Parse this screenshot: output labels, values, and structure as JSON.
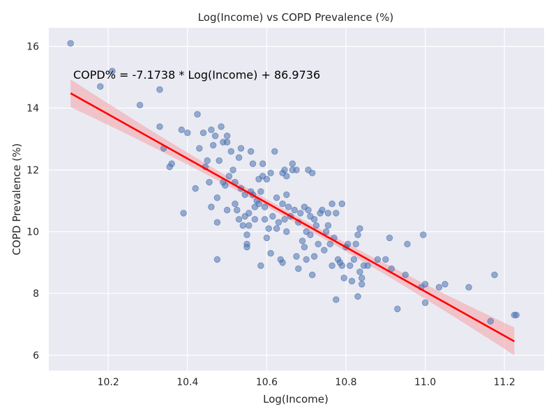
{
  "chart_data": {
    "type": "scatter",
    "title": "Log(Income) vs COPD Prevalence (%)",
    "xlabel": "Log(Income)",
    "ylabel": "COPD Prevalence (%)",
    "xlim": [
      10.05,
      11.3
    ],
    "ylim": [
      5.5,
      16.6
    ],
    "xticks": [
      10.2,
      10.4,
      10.6,
      10.8,
      11.0,
      11.2
    ],
    "xtick_labels": [
      "10.2",
      "10.4",
      "10.6",
      "10.8",
      "11.0",
      "11.2"
    ],
    "yticks": [
      6,
      8,
      10,
      12,
      14,
      16
    ],
    "ytick_labels": [
      "6",
      "8",
      "10",
      "12",
      "14",
      "16"
    ],
    "grid": true,
    "annotation": "COPD% = -7.1738 * Log(Income) + 86.9736",
    "regression": {
      "slope": -7.1738,
      "intercept": 86.9736,
      "x_range": [
        10.105,
        11.225
      ],
      "ci_halfwidth_ends": 0.45,
      "ci_halfwidth_mid": 0.12
    },
    "colors": {
      "points": "#4c72b0",
      "line": "#ff0000",
      "band": "#f4a3a8",
      "background": "#eaeaf2",
      "grid": "#ffffff"
    },
    "points": [
      [
        10.105,
        16.1
      ],
      [
        10.18,
        14.7
      ],
      [
        10.21,
        15.2
      ],
      [
        10.28,
        14.1
      ],
      [
        10.33,
        14.6
      ],
      [
        10.33,
        13.4
      ],
      [
        10.34,
        12.7
      ],
      [
        10.355,
        12.1
      ],
      [
        10.36,
        12.2
      ],
      [
        10.385,
        13.3
      ],
      [
        10.39,
        10.6
      ],
      [
        10.4,
        13.2
      ],
      [
        10.42,
        11.4
      ],
      [
        10.425,
        13.8
      ],
      [
        10.43,
        12.7
      ],
      [
        10.44,
        13.2
      ],
      [
        10.445,
        12.1
      ],
      [
        10.45,
        12.3
      ],
      [
        10.455,
        11.6
      ],
      [
        10.46,
        13.3
      ],
      [
        10.46,
        10.8
      ],
      [
        10.465,
        12.8
      ],
      [
        10.47,
        13.1
      ],
      [
        10.475,
        11.1
      ],
      [
        10.475,
        10.3
      ],
      [
        10.475,
        9.1
      ],
      [
        10.48,
        12.3
      ],
      [
        10.485,
        13.4
      ],
      [
        10.49,
        12.9
      ],
      [
        10.49,
        11.6
      ],
      [
        10.495,
        11.5
      ],
      [
        10.5,
        13.1
      ],
      [
        10.5,
        12.9
      ],
      [
        10.5,
        10.7
      ],
      [
        10.505,
        11.8
      ],
      [
        10.51,
        12.6
      ],
      [
        10.515,
        12.0
      ],
      [
        10.52,
        11.6
      ],
      [
        10.52,
        10.9
      ],
      [
        10.525,
        10.7
      ],
      [
        10.53,
        12.4
      ],
      [
        10.53,
        10.4
      ],
      [
        10.535,
        12.7
      ],
      [
        10.535,
        11.4
      ],
      [
        10.54,
        10.2
      ],
      [
        10.545,
        11.2
      ],
      [
        10.545,
        10.5
      ],
      [
        10.55,
        9.9
      ],
      [
        10.55,
        9.6
      ],
      [
        10.55,
        9.5
      ],
      [
        10.555,
        10.6
      ],
      [
        10.555,
        10.2
      ],
      [
        10.56,
        12.6
      ],
      [
        10.56,
        11.3
      ],
      [
        10.565,
        12.2
      ],
      [
        10.565,
        11.2
      ],
      [
        10.57,
        10.4
      ],
      [
        10.57,
        10.8
      ],
      [
        10.575,
        11.0
      ],
      [
        10.58,
        11.7
      ],
      [
        10.58,
        10.9
      ],
      [
        10.585,
        11.3
      ],
      [
        10.585,
        8.9
      ],
      [
        10.59,
        12.2
      ],
      [
        10.59,
        11.8
      ],
      [
        10.595,
        10.8
      ],
      [
        10.595,
        10.4
      ],
      [
        10.6,
        11.7
      ],
      [
        10.6,
        9.8
      ],
      [
        10.605,
        10.1
      ],
      [
        10.61,
        11.9
      ],
      [
        10.61,
        9.3
      ],
      [
        10.615,
        10.5
      ],
      [
        10.62,
        12.6
      ],
      [
        10.625,
        11.1
      ],
      [
        10.625,
        10.1
      ],
      [
        10.63,
        10.3
      ],
      [
        10.635,
        9.1
      ],
      [
        10.64,
        11.9
      ],
      [
        10.64,
        10.9
      ],
      [
        10.64,
        9.0
      ],
      [
        10.645,
        12.0
      ],
      [
        10.645,
        10.4
      ],
      [
        10.65,
        11.8
      ],
      [
        10.65,
        11.2
      ],
      [
        10.65,
        10.0
      ],
      [
        10.655,
        10.8
      ],
      [
        10.66,
        10.5
      ],
      [
        10.665,
        12.0
      ],
      [
        10.665,
        12.2
      ],
      [
        10.67,
        10.7
      ],
      [
        10.675,
        12.0
      ],
      [
        10.675,
        9.2
      ],
      [
        10.68,
        10.3
      ],
      [
        10.68,
        8.8
      ],
      [
        10.685,
        10.6
      ],
      [
        10.69,
        9.7
      ],
      [
        10.695,
        10.8
      ],
      [
        10.695,
        9.5
      ],
      [
        10.7,
        10.0
      ],
      [
        10.7,
        9.1
      ],
      [
        10.705,
        10.7
      ],
      [
        10.705,
        12.0
      ],
      [
        10.71,
        10.5
      ],
      [
        10.71,
        9.9
      ],
      [
        10.715,
        8.6
      ],
      [
        10.715,
        11.9
      ],
      [
        10.72,
        10.4
      ],
      [
        10.72,
        9.2
      ],
      [
        10.725,
        10.2
      ],
      [
        10.73,
        9.6
      ],
      [
        10.735,
        10.6
      ],
      [
        10.74,
        10.7
      ],
      [
        10.745,
        9.4
      ],
      [
        10.75,
        10.0
      ],
      [
        10.755,
        10.6
      ],
      [
        10.755,
        10.2
      ],
      [
        10.76,
        9.6
      ],
      [
        10.765,
        10.9
      ],
      [
        10.765,
        8.9
      ],
      [
        10.77,
        9.8
      ],
      [
        10.775,
        10.6
      ],
      [
        10.775,
        7.8
      ],
      [
        10.78,
        9.1
      ],
      [
        10.785,
        9.0
      ],
      [
        10.79,
        10.9
      ],
      [
        10.79,
        8.9
      ],
      [
        10.795,
        8.5
      ],
      [
        10.8,
        9.5
      ],
      [
        10.805,
        9.6
      ],
      [
        10.81,
        8.9
      ],
      [
        10.815,
        8.4
      ],
      [
        10.82,
        9.1
      ],
      [
        10.825,
        9.6
      ],
      [
        10.83,
        9.9
      ],
      [
        10.83,
        7.9
      ],
      [
        10.835,
        10.1
      ],
      [
        10.835,
        8.7
      ],
      [
        10.84,
        8.5
      ],
      [
        10.84,
        8.3
      ],
      [
        10.845,
        8.9
      ],
      [
        10.855,
        8.9
      ],
      [
        10.88,
        9.1
      ],
      [
        10.9,
        9.1
      ],
      [
        10.91,
        9.8
      ],
      [
        10.915,
        8.8
      ],
      [
        10.93,
        7.5
      ],
      [
        10.95,
        8.6
      ],
      [
        10.955,
        9.6
      ],
      [
        10.99,
        8.2
      ],
      [
        10.995,
        9.9
      ],
      [
        11.0,
        8.3
      ],
      [
        11.0,
        7.7
      ],
      [
        11.035,
        8.2
      ],
      [
        11.05,
        8.3
      ],
      [
        11.11,
        8.2
      ],
      [
        11.165,
        7.1
      ],
      [
        11.175,
        8.6
      ],
      [
        11.225,
        7.3
      ],
      [
        11.23,
        7.3
      ]
    ]
  }
}
